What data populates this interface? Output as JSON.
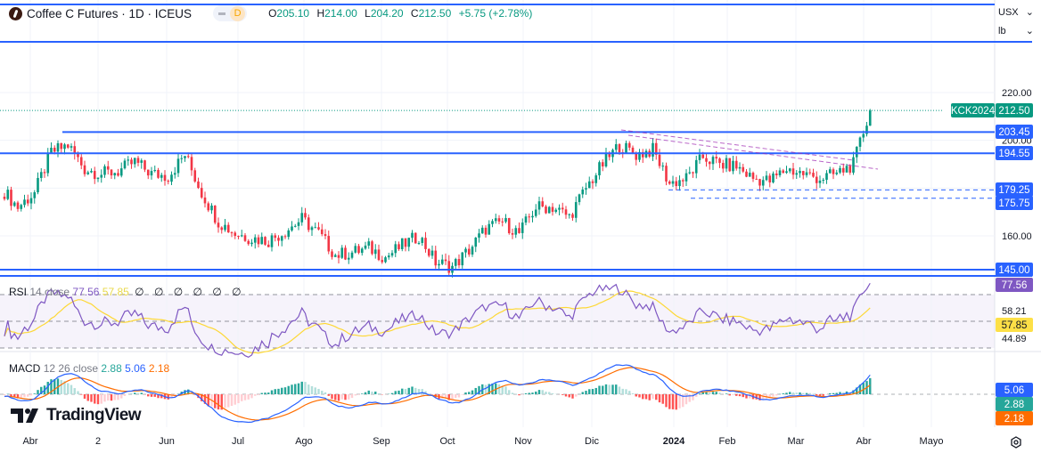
{
  "header": {
    "symbol_title": "Coffee C Futures · 1D · ICEUS",
    "interval_badge": "D",
    "ohlc": {
      "o_label": "O",
      "o": "205.10",
      "h_label": "H",
      "h": "214.00",
      "l_label": "L",
      "l": "204.20",
      "c_label": "C",
      "c": "212.50",
      "change": "+5.75 (+2.78%)"
    }
  },
  "scale_selectors": {
    "currency": "USX",
    "unit": "lb"
  },
  "price_scale": {
    "ticks": [
      "220.00",
      "200.00",
      "160.00"
    ],
    "symbol_label": "KCK2024",
    "last_price": "212.50",
    "level_labels": [
      "203.45",
      "194.55",
      "179.25",
      "175.75",
      "145.00"
    ]
  },
  "rsi": {
    "title": "RSI",
    "params": "14 close",
    "value": "77.56",
    "ma_value": "57.85",
    "extra": "∅ ∅ ∅ ∅ ∅ ∅",
    "axis_labels": [
      "58.21",
      "44.89"
    ]
  },
  "macd": {
    "title": "MACD",
    "params": "12 26 close",
    "hist": "2.88",
    "macd": "5.06",
    "signal": "2.18"
  },
  "time_axis": {
    "ticks": [
      "Abr",
      "2",
      "Jun",
      "Jul",
      "Ago",
      "Sep",
      "Oct",
      "Nov",
      "Dic",
      "2024",
      "Feb",
      "Mar",
      "Abr",
      "Mayo"
    ]
  },
  "branding": "TradingView",
  "colors": {
    "up": "#089981",
    "down": "#f23645",
    "level_line": "#2962ff",
    "trend_line": "#9c27b0",
    "rsi": "#7e57c2",
    "rsi_ma": "#fdd835",
    "macd": "#2962ff",
    "signal": "#ff6d00"
  },
  "chart_data": {
    "type": "candlestick",
    "period": "1D",
    "note_resolution": "weekly closes, approximate",
    "weekly_closes": [
      180,
      172,
      178,
      195,
      198,
      188,
      186,
      187,
      191,
      186,
      185,
      194,
      178,
      166,
      161,
      159,
      158,
      162,
      167,
      161,
      152,
      153,
      155,
      151,
      156,
      160,
      149,
      147,
      154,
      163,
      166,
      161,
      172,
      172,
      168,
      180,
      190,
      198,
      194,
      196,
      182,
      184,
      193,
      190,
      189,
      184,
      183,
      188,
      186,
      184,
      186,
      190,
      212.5
    ],
    "horizontal_levels": [
      203.45,
      194.55,
      179.25,
      175.75,
      145.0
    ],
    "ylim": [
      140,
      232
    ],
    "x_ticks": [
      "Abr",
      "2",
      "Jun",
      "Jul",
      "Ago",
      "Sep",
      "Oct",
      "Nov",
      "Dic",
      "2024",
      "Feb",
      "Mar",
      "Abr",
      "Mayo"
    ],
    "rsi_last": 77.56,
    "rsi_ma_last": 57.85,
    "macd_last": 5.06,
    "signal_last": 2.18,
    "hist_last": 2.88
  }
}
